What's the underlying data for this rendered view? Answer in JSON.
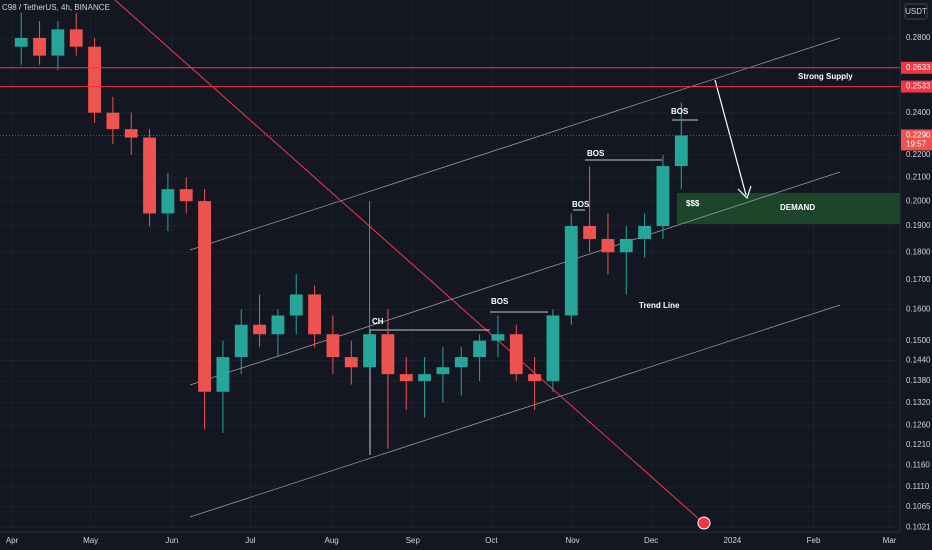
{
  "chart_data": {
    "type": "candlestick",
    "title": "C98 / TetherUS, 4h, BINANCE",
    "currency": "USDT",
    "log_scale": true,
    "up_color": "#26a69a",
    "down_color": "#ef5350",
    "x": [
      0,
      7,
      14,
      21,
      28,
      35,
      42,
      49,
      56,
      63,
      70,
      77,
      84,
      91,
      98,
      105,
      112,
      119,
      126,
      133,
      140,
      147,
      154,
      161,
      168,
      175,
      182,
      189,
      196,
      203,
      210,
      217,
      224,
      231,
      238,
      245,
      252
    ],
    "open": [
      0.275,
      0.28,
      0.27,
      0.285,
      0.275,
      0.24,
      0.232,
      0.228,
      0.195,
      0.205,
      0.2,
      0.135,
      0.145,
      0.155,
      0.152,
      0.158,
      0.165,
      0.152,
      0.145,
      0.142,
      0.152,
      0.14,
      0.138,
      0.14,
      0.142,
      0.145,
      0.15,
      0.152,
      0.14,
      0.138,
      0.158,
      0.19,
      0.185,
      0.18,
      0.185,
      0.19,
      0.215
    ],
    "high": [
      0.295,
      0.29,
      0.29,
      0.295,
      0.28,
      0.248,
      0.24,
      0.232,
      0.212,
      0.21,
      0.205,
      0.15,
      0.16,
      0.165,
      0.16,
      0.172,
      0.168,
      0.158,
      0.15,
      0.2,
      0.16,
      0.145,
      0.145,
      0.148,
      0.148,
      0.152,
      0.158,
      0.155,
      0.145,
      0.16,
      0.195,
      0.215,
      0.195,
      0.19,
      0.195,
      0.22,
      0.245
    ],
    "low": [
      0.265,
      0.265,
      0.262,
      0.27,
      0.235,
      0.225,
      0.22,
      0.19,
      0.188,
      0.195,
      0.125,
      0.124,
      0.14,
      0.148,
      0.145,
      0.152,
      0.148,
      0.14,
      0.137,
      0.14,
      0.12,
      0.13,
      0.128,
      0.132,
      0.134,
      0.138,
      0.145,
      0.138,
      0.13,
      0.135,
      0.155,
      0.18,
      0.172,
      0.165,
      0.178,
      0.185,
      0.205
    ],
    "close": [
      0.28,
      0.27,
      0.285,
      0.275,
      0.24,
      0.232,
      0.228,
      0.195,
      0.205,
      0.2,
      0.135,
      0.145,
      0.155,
      0.152,
      0.158,
      0.165,
      0.152,
      0.145,
      0.142,
      0.152,
      0.14,
      0.138,
      0.14,
      0.142,
      0.145,
      0.15,
      0.152,
      0.14,
      0.138,
      0.158,
      0.19,
      0.185,
      0.18,
      0.185,
      0.19,
      0.215,
      0.229
    ],
    "xlim": [
      -4.6,
      339
    ],
    "xticks": [
      {
        "value": 0,
        "label": "Apr"
      },
      {
        "value": 30,
        "label": "May"
      },
      {
        "value": 61,
        "label": "Jun"
      },
      {
        "value": 91,
        "label": "Jul"
      },
      {
        "value": 122,
        "label": "Aug"
      },
      {
        "value": 153,
        "label": "Sep"
      },
      {
        "value": 183,
        "label": "Oct"
      },
      {
        "value": 214,
        "label": "Nov"
      },
      {
        "value": 244,
        "label": "Dec"
      },
      {
        "value": 275,
        "label": "2024"
      },
      {
        "value": 306,
        "label": "Feb"
      },
      {
        "value": 335,
        "label": "Mar"
      }
    ],
    "ylim": [
      0.1011,
      0.3028
    ],
    "yticks": [
      {
        "value": 0.28,
        "label": "0.2800"
      },
      {
        "value": 0.24,
        "label": "0.2400"
      },
      {
        "value": 0.22,
        "label": "0.2200"
      },
      {
        "value": 0.21,
        "label": "0.2100"
      },
      {
        "value": 0.2,
        "label": "0.2000"
      },
      {
        "value": 0.19,
        "label": "0.1900"
      },
      {
        "value": 0.18,
        "label": "0.1800"
      },
      {
        "value": 0.17,
        "label": "0.1700"
      },
      {
        "value": 0.16,
        "label": "0.1600"
      },
      {
        "value": 0.15,
        "label": "0.1500"
      },
      {
        "value": 0.144,
        "label": "0.1440"
      },
      {
        "value": 0.138,
        "label": "0.1380"
      },
      {
        "value": 0.132,
        "label": "0.1320"
      },
      {
        "value": 0.126,
        "label": "0.1260"
      },
      {
        "value": 0.121,
        "label": "0.1210"
      },
      {
        "value": 0.116,
        "label": "0.1160"
      },
      {
        "value": 0.111,
        "label": "0.1110"
      },
      {
        "value": 0.1065,
        "label": "0.1065"
      },
      {
        "value": 0.1021,
        "label": "0.1021"
      }
    ],
    "levels": [
      0.2633,
      0.2533
    ],
    "level_color": "#f23645",
    "last_price": {
      "value": 0.229,
      "label": "0.2290"
    },
    "countdown": "19:57",
    "annotations": [
      "Strong Supply",
      "BOS",
      "BOS",
      "BOS",
      "BOS",
      "CH",
      "$$$",
      "Trend Line",
      "DEMAND"
    ]
  }
}
